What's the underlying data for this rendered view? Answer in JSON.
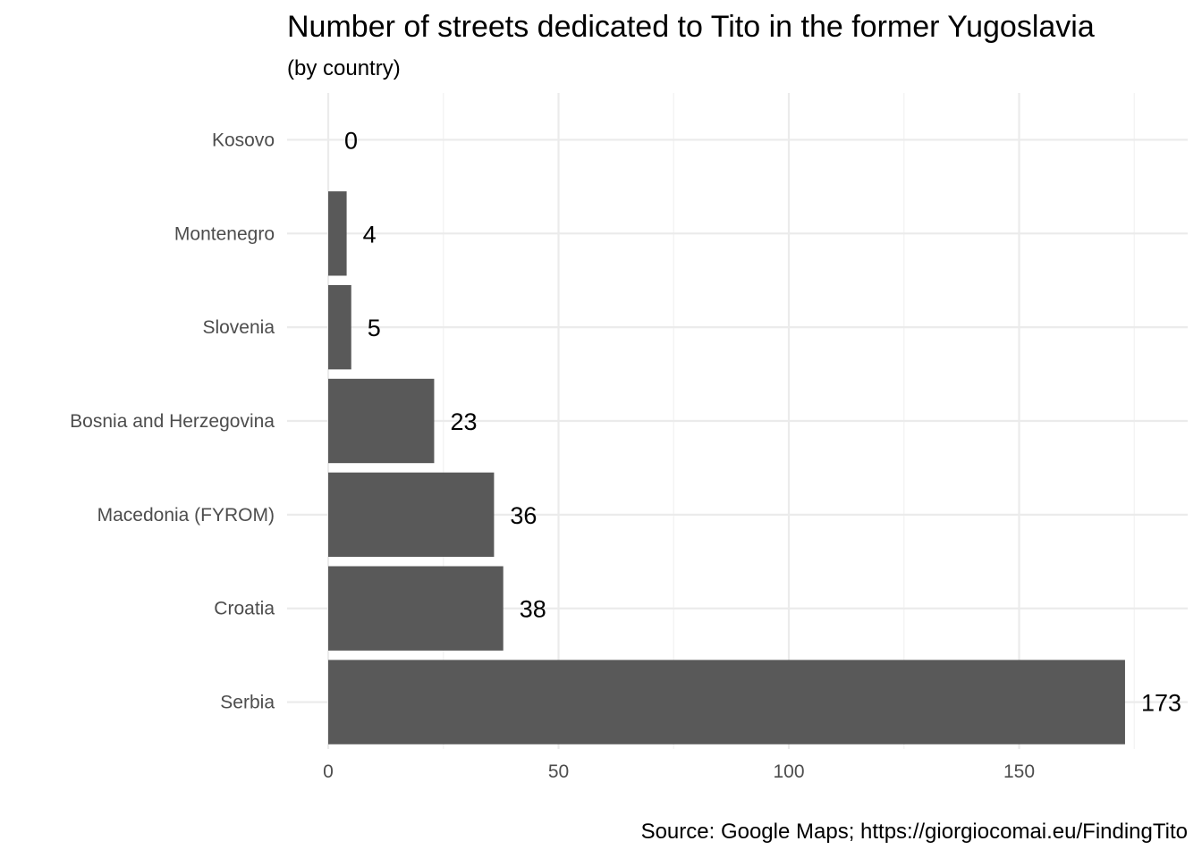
{
  "chart_data": {
    "type": "bar",
    "orientation": "horizontal",
    "title": "Number of streets dedicated to Tito in the former Yugoslavia",
    "subtitle": "(by country)",
    "caption": "Source: Google Maps; https://giorgiocomai.eu/FindingTito",
    "xlabel": "",
    "ylabel": "",
    "categories": [
      "Kosovo",
      "Montenegro",
      "Slovenia",
      "Bosnia and Herzegovina",
      "Macedonia (FYROM)",
      "Croatia",
      "Serbia"
    ],
    "values": [
      0,
      4,
      5,
      23,
      36,
      38,
      173
    ],
    "data_labels": [
      "0",
      "4",
      "5",
      "23",
      "36",
      "38",
      "173"
    ],
    "xlim": [
      0,
      180
    ],
    "x_ticks": [
      0,
      50,
      100,
      150
    ],
    "x_tick_labels": [
      "0",
      "50",
      "100",
      "150"
    ],
    "grid": true,
    "legend": "none",
    "colors": {
      "bar": "#595959",
      "grid_major": "#ebebeb",
      "grid_minor": "#f2f2f2",
      "tick_text": "#4d4d4d",
      "text": "#000000"
    }
  }
}
